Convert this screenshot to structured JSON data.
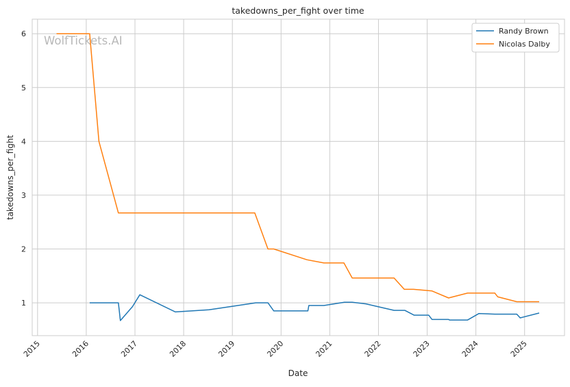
{
  "chart_data": {
    "type": "line",
    "title": "takedowns_per_fight over time",
    "xlabel": "Date",
    "ylabel": "takedowns_per_fight",
    "watermark": "WolfTickets.AI",
    "x_unit": "decimal year",
    "xlim": [
      2014.89,
      2025.82
    ],
    "ylim": [
      0.39,
      6.27
    ],
    "xticks": [
      2015,
      2016,
      2017,
      2018,
      2019,
      2020,
      2021,
      2022,
      2023,
      2024,
      2025
    ],
    "xtick_labels": [
      "2015",
      "2016",
      "2017",
      "2018",
      "2019",
      "2020",
      "2021",
      "2022",
      "2023",
      "2024",
      "2025"
    ],
    "yticks": [
      1,
      2,
      3,
      4,
      5,
      6
    ],
    "ytick_labels": [
      "1",
      "2",
      "3",
      "4",
      "5",
      "6"
    ],
    "grid": true,
    "legend_position": "top-right",
    "series": [
      {
        "name": "Randy Brown",
        "color": "#1f77b4",
        "x": [
          2016.07,
          2016.66,
          2016.7,
          2016.95,
          2017.1,
          2017.83,
          2018.52,
          2019.48,
          2019.73,
          2019.85,
          2020.55,
          2020.57,
          2020.88,
          2021.3,
          2021.46,
          2021.74,
          2022.32,
          2022.54,
          2022.73,
          2023.03,
          2023.1,
          2023.44,
          2023.46,
          2023.83,
          2024.06,
          2024.39,
          2024.84,
          2024.91,
          2025.3
        ],
        "y": [
          1.0,
          1.0,
          0.67,
          0.93,
          1.15,
          0.83,
          0.87,
          1.0,
          1.0,
          0.85,
          0.85,
          0.95,
          0.95,
          1.01,
          1.01,
          0.98,
          0.86,
          0.86,
          0.77,
          0.77,
          0.69,
          0.69,
          0.68,
          0.68,
          0.8,
          0.79,
          0.79,
          0.72,
          0.81
        ]
      },
      {
        "name": "Nicolas Dalby",
        "color": "#ff7f0e",
        "x": [
          2015.39,
          2016.07,
          2016.26,
          2016.66,
          2019.46,
          2019.73,
          2019.85,
          2020.53,
          2020.88,
          2021.29,
          2021.46,
          2022.32,
          2022.53,
          2022.72,
          2023.1,
          2023.44,
          2023.83,
          2024.39,
          2024.45,
          2024.84,
          2025.3
        ],
        "y": [
          6.0,
          6.0,
          4.0,
          2.67,
          2.67,
          2.0,
          2.0,
          1.8,
          1.74,
          1.74,
          1.46,
          1.46,
          1.25,
          1.25,
          1.22,
          1.09,
          1.18,
          1.18,
          1.11,
          1.02,
          1.02
        ]
      }
    ]
  }
}
